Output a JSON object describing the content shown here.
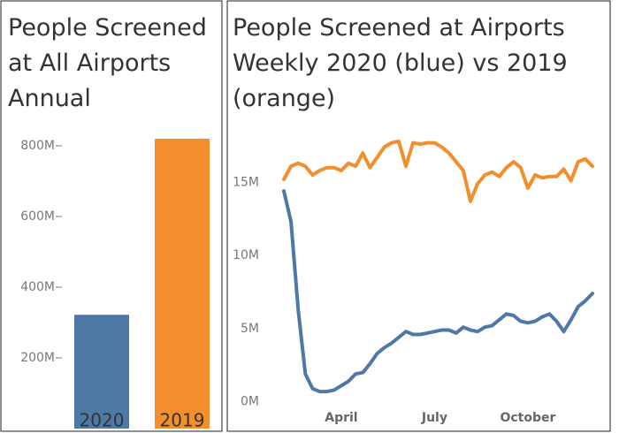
{
  "chart_data": [
    {
      "type": "bar",
      "title": "People Screened at All Airports Annual",
      "categories": [
        "2020",
        "2019"
      ],
      "values": [
        322000000,
        820000000
      ],
      "colors": [
        "#4e79a7",
        "#f28e2b"
      ],
      "ylim": [
        0,
        850000000
      ],
      "yticks": [
        {
          "value": 200000000,
          "label": "200M"
        },
        {
          "value": 400000000,
          "label": "400M"
        },
        {
          "value": 600000000,
          "label": "600M"
        },
        {
          "value": 800000000,
          "label": "800M"
        }
      ],
      "grid": false
    },
    {
      "type": "line",
      "title": "People Screened at Airports Weekly 2020 (blue) vs 2019 (orange)",
      "categories": [
        null,
        null,
        null,
        null,
        null,
        null,
        null,
        null,
        "April",
        null,
        null,
        null,
        null,
        null,
        null,
        null,
        null,
        null,
        null,
        null,
        null,
        "July",
        null,
        null,
        null,
        null,
        null,
        null,
        null,
        null,
        null,
        null,
        null,
        null,
        "October",
        null,
        null,
        null,
        null,
        null,
        null,
        null,
        null,
        null
      ],
      "series": [
        {
          "color": "#f28e2b",
          "values": [
            15200000,
            16100000,
            16300000,
            16100000,
            15500000,
            15800000,
            16000000,
            16000000,
            15800000,
            16300000,
            16100000,
            17000000,
            16000000,
            16700000,
            17400000,
            17700000,
            17800000,
            16100000,
            17700000,
            17600000,
            17700000,
            17700000,
            17400000,
            17000000,
            16400000,
            15800000,
            13700000,
            14900000,
            15500000,
            15700000,
            15400000,
            16000000,
            16400000,
            16000000,
            14600000,
            15500000,
            15300000,
            15400000,
            15400000,
            15900000,
            15100000,
            16400000,
            16600000,
            16100000
          ]
        },
        {
          "color": "#4e79a7",
          "values": [
            14400000,
            12300000,
            6300000,
            1900000,
            900000,
            700000,
            700000,
            800000,
            1100000,
            1400000,
            1900000,
            2000000,
            2600000,
            3300000,
            3700000,
            4000000,
            4400000,
            4800000,
            4600000,
            4600000,
            4700000,
            4800000,
            4900000,
            4900000,
            4700000,
            5100000,
            4900000,
            4800000,
            5100000,
            5200000,
            5600000,
            6000000,
            5900000,
            5500000,
            5400000,
            5500000,
            5800000,
            6000000,
            5500000,
            4800000,
            5600000,
            6500000,
            6900000,
            7400000
          ]
        }
      ],
      "ylim": [
        -200000,
        18700000
      ],
      "yticks": [
        {
          "value": 0,
          "label": "0M"
        },
        {
          "value": 5000000,
          "label": "5M"
        },
        {
          "value": 10000000,
          "label": "10M"
        },
        {
          "value": 15000000,
          "label": "15M"
        }
      ],
      "grid": false
    }
  ]
}
